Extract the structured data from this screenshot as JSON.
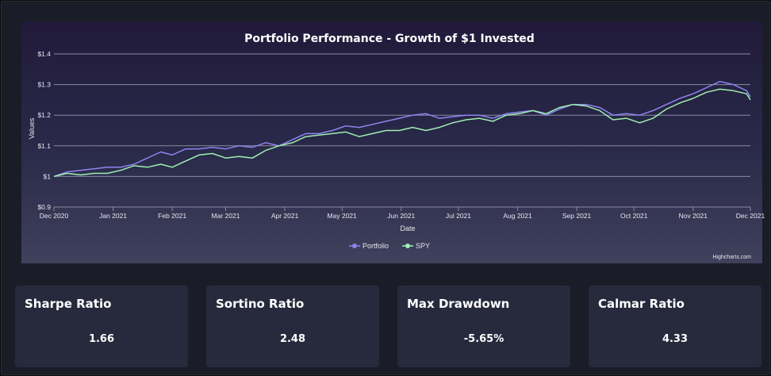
{
  "chart_data": {
    "type": "line",
    "title": "Portfolio Performance - Growth of $1 Invested",
    "xlabel": "Date",
    "ylabel": "Values",
    "ylim": [
      0.9,
      1.4
    ],
    "yticks": [
      "$0.9",
      "$1",
      "$1.1",
      "$1.2",
      "$1.3",
      "$1.4"
    ],
    "ytick_values": [
      0.9,
      1.0,
      1.1,
      1.2,
      1.3,
      1.4
    ],
    "xlim": [
      "2020-12-01",
      "2021-12-01"
    ],
    "xticks": [
      {
        "label": "Dec 2020",
        "date": "2020-12-01"
      },
      {
        "label": "Jan 2021",
        "date": "2021-01-01"
      },
      {
        "label": "Feb 2021",
        "date": "2021-02-01"
      },
      {
        "label": "Mar 2021",
        "date": "2021-03-01"
      },
      {
        "label": "Apr 2021",
        "date": "2021-04-01"
      },
      {
        "label": "May 2021",
        "date": "2021-05-01"
      },
      {
        "label": "Jun 2021",
        "date": "2021-06-01"
      },
      {
        "label": "Jul 2021",
        "date": "2021-07-01"
      },
      {
        "label": "Aug 2021",
        "date": "2021-08-01"
      },
      {
        "label": "Sep 2021",
        "date": "2021-09-01"
      },
      {
        "label": "Oct 2021",
        "date": "2021-10-01"
      },
      {
        "label": "Nov 2021",
        "date": "2021-11-01"
      },
      {
        "label": "Dec 2021",
        "date": "2021-12-01"
      }
    ],
    "grid": true,
    "legend": "bottom-center",
    "credit": "Highcharts.com",
    "series": [
      {
        "name": "Portfolio",
        "color": "#8b85f0",
        "points": [
          [
            "2020-12-01",
            1.0
          ],
          [
            "2020-12-08",
            1.015
          ],
          [
            "2020-12-15",
            1.02
          ],
          [
            "2020-12-22",
            1.025
          ],
          [
            "2020-12-29",
            1.03
          ],
          [
            "2021-01-05",
            1.03
          ],
          [
            "2021-01-12",
            1.04
          ],
          [
            "2021-01-19",
            1.06
          ],
          [
            "2021-01-26",
            1.08
          ],
          [
            "2021-02-01",
            1.07
          ],
          [
            "2021-02-08",
            1.09
          ],
          [
            "2021-02-15",
            1.09
          ],
          [
            "2021-02-22",
            1.095
          ],
          [
            "2021-03-01",
            1.09
          ],
          [
            "2021-03-08",
            1.1
          ],
          [
            "2021-03-15",
            1.095
          ],
          [
            "2021-03-22",
            1.11
          ],
          [
            "2021-03-29",
            1.1
          ],
          [
            "2021-04-05",
            1.12
          ],
          [
            "2021-04-12",
            1.14
          ],
          [
            "2021-04-19",
            1.14
          ],
          [
            "2021-04-26",
            1.15
          ],
          [
            "2021-05-03",
            1.165
          ],
          [
            "2021-05-10",
            1.16
          ],
          [
            "2021-05-17",
            1.17
          ],
          [
            "2021-05-24",
            1.18
          ],
          [
            "2021-05-31",
            1.19
          ],
          [
            "2021-06-07",
            1.2
          ],
          [
            "2021-06-14",
            1.205
          ],
          [
            "2021-06-21",
            1.19
          ],
          [
            "2021-06-28",
            1.195
          ],
          [
            "2021-07-05",
            1.2
          ],
          [
            "2021-07-12",
            1.2
          ],
          [
            "2021-07-19",
            1.19
          ],
          [
            "2021-07-26",
            1.205
          ],
          [
            "2021-08-02",
            1.21
          ],
          [
            "2021-08-09",
            1.215
          ],
          [
            "2021-08-16",
            1.2
          ],
          [
            "2021-08-23",
            1.22
          ],
          [
            "2021-08-30",
            1.235
          ],
          [
            "2021-09-06",
            1.235
          ],
          [
            "2021-09-13",
            1.225
          ],
          [
            "2021-09-20",
            1.2
          ],
          [
            "2021-09-27",
            1.205
          ],
          [
            "2021-10-04",
            1.2
          ],
          [
            "2021-10-11",
            1.215
          ],
          [
            "2021-10-18",
            1.235
          ],
          [
            "2021-10-25",
            1.255
          ],
          [
            "2021-11-01",
            1.27
          ],
          [
            "2021-11-08",
            1.29
          ],
          [
            "2021-11-15",
            1.31
          ],
          [
            "2021-11-22",
            1.3
          ],
          [
            "2021-11-29",
            1.28
          ],
          [
            "2021-12-01",
            1.26
          ]
        ]
      },
      {
        "name": "SPY",
        "color": "#9ef0b0",
        "points": [
          [
            "2020-12-01",
            1.0
          ],
          [
            "2020-12-08",
            1.01
          ],
          [
            "2020-12-15",
            1.005
          ],
          [
            "2020-12-22",
            1.01
          ],
          [
            "2020-12-29",
            1.01
          ],
          [
            "2021-01-05",
            1.02
          ],
          [
            "2021-01-12",
            1.035
          ],
          [
            "2021-01-19",
            1.03
          ],
          [
            "2021-01-26",
            1.04
          ],
          [
            "2021-02-01",
            1.03
          ],
          [
            "2021-02-08",
            1.05
          ],
          [
            "2021-02-15",
            1.07
          ],
          [
            "2021-02-22",
            1.075
          ],
          [
            "2021-03-01",
            1.06
          ],
          [
            "2021-03-08",
            1.065
          ],
          [
            "2021-03-15",
            1.06
          ],
          [
            "2021-03-22",
            1.085
          ],
          [
            "2021-03-29",
            1.1
          ],
          [
            "2021-04-05",
            1.11
          ],
          [
            "2021-04-12",
            1.13
          ],
          [
            "2021-04-19",
            1.135
          ],
          [
            "2021-04-26",
            1.14
          ],
          [
            "2021-05-03",
            1.145
          ],
          [
            "2021-05-10",
            1.13
          ],
          [
            "2021-05-17",
            1.14
          ],
          [
            "2021-05-24",
            1.15
          ],
          [
            "2021-05-31",
            1.15
          ],
          [
            "2021-06-07",
            1.16
          ],
          [
            "2021-06-14",
            1.15
          ],
          [
            "2021-06-21",
            1.16
          ],
          [
            "2021-06-28",
            1.175
          ],
          [
            "2021-07-05",
            1.185
          ],
          [
            "2021-07-12",
            1.19
          ],
          [
            "2021-07-19",
            1.18
          ],
          [
            "2021-07-26",
            1.2
          ],
          [
            "2021-08-02",
            1.205
          ],
          [
            "2021-08-09",
            1.215
          ],
          [
            "2021-08-16",
            1.205
          ],
          [
            "2021-08-23",
            1.225
          ],
          [
            "2021-08-30",
            1.235
          ],
          [
            "2021-09-06",
            1.23
          ],
          [
            "2021-09-13",
            1.215
          ],
          [
            "2021-09-20",
            1.185
          ],
          [
            "2021-09-27",
            1.19
          ],
          [
            "2021-10-04",
            1.175
          ],
          [
            "2021-10-11",
            1.19
          ],
          [
            "2021-10-18",
            1.22
          ],
          [
            "2021-10-25",
            1.24
          ],
          [
            "2021-11-01",
            1.255
          ],
          [
            "2021-11-08",
            1.275
          ],
          [
            "2021-11-15",
            1.285
          ],
          [
            "2021-11-22",
            1.28
          ],
          [
            "2021-11-29",
            1.27
          ],
          [
            "2021-12-01",
            1.25
          ]
        ]
      }
    ]
  },
  "colors": {
    "axis_text": "#e6e6ee",
    "gridline": "#8a8aa0"
  },
  "metrics": [
    {
      "title": "Sharpe Ratio",
      "value": "1.66"
    },
    {
      "title": "Sortino Ratio",
      "value": "2.48"
    },
    {
      "title": "Max Drawdown",
      "value": "-5.65%"
    },
    {
      "title": "Calmar Ratio",
      "value": "4.33"
    }
  ]
}
